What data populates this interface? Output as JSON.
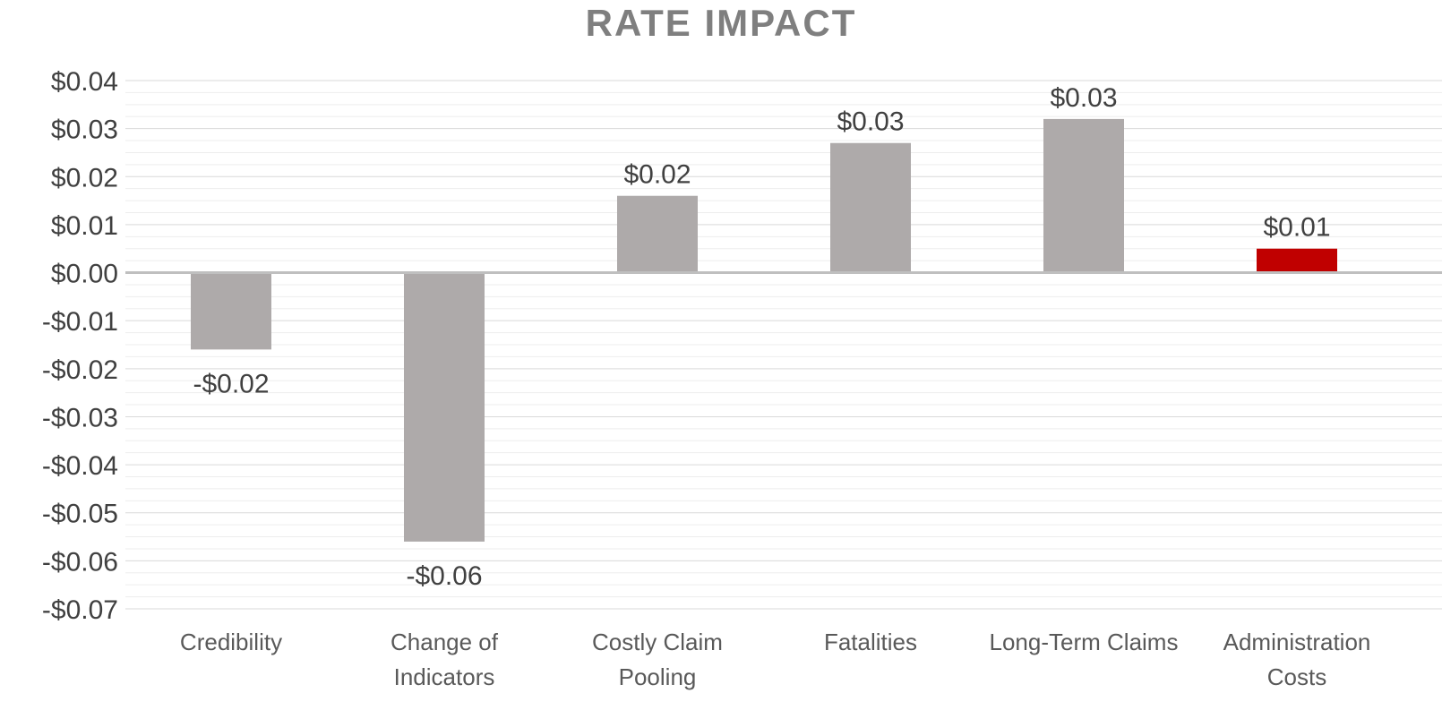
{
  "chart_data": {
    "type": "bar",
    "title": "RATE IMPACT",
    "categories": [
      [
        "Credibility"
      ],
      [
        "Change of",
        "Indicators"
      ],
      [
        "Costly Claim",
        "Pooling"
      ],
      [
        "Fatalities"
      ],
      [
        "Long-Term Claims"
      ],
      [
        "Administration",
        "Costs"
      ]
    ],
    "values": [
      -0.016,
      -0.056,
      0.016,
      0.027,
      0.032,
      0.005
    ],
    "data_labels": [
      "-$0.02",
      "-$0.06",
      "$0.02",
      "$0.03",
      "$0.03",
      "$0.01"
    ],
    "bar_colors": [
      "#aeaaaa",
      "#aeaaaa",
      "#aeaaaa",
      "#aeaaaa",
      "#aeaaaa",
      "#c00000"
    ],
    "ylim": [
      -0.07,
      0.04
    ],
    "yticks": [
      0.04,
      0.03,
      0.02,
      0.01,
      0.0,
      -0.01,
      -0.02,
      -0.03,
      -0.04,
      -0.05,
      -0.06,
      -0.07
    ],
    "ytick_labels": [
      "$0.04",
      "$0.03",
      "$0.02",
      "$0.01",
      "$0.00",
      "-$0.01",
      "-$0.02",
      "-$0.03",
      "-$0.04",
      "-$0.05",
      "-$0.06",
      "-$0.07"
    ],
    "minor_gridlines_per_major": 4,
    "grid": true,
    "legend": "none",
    "xlabel": "",
    "ylabel": ""
  }
}
